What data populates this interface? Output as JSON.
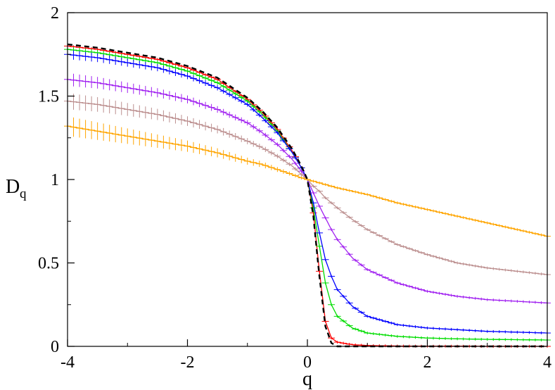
{
  "chart_data": {
    "type": "line",
    "title": "",
    "xlabel": "q",
    "ylabel": "D",
    "ylabel_subscript": "q",
    "xlim": [
      -4,
      4
    ],
    "ylim": [
      0,
      2
    ],
    "grid": false,
    "x_ticks": [
      -4,
      -2,
      0,
      2,
      4
    ],
    "x_tick_labels": [
      "-4",
      "-2",
      "0",
      "2",
      "4"
    ],
    "y_ticks": [
      0,
      0.5,
      1,
      1.5,
      2
    ],
    "y_tick_labels": [
      "0",
      "0.5",
      "1",
      "1.5",
      "2"
    ],
    "x": [
      -4,
      -3.5,
      -3,
      -2.5,
      -2,
      -1.5,
      -1,
      -0.75,
      -0.5,
      -0.25,
      -0.1,
      0,
      0.1,
      0.2,
      0.3,
      0.4,
      0.5,
      0.75,
      1,
      1.5,
      2,
      2.5,
      3,
      3.5,
      4
    ],
    "series": [
      {
        "color": "#ff0000",
        "style": "solid",
        "error_bars": true,
        "values": [
          1.8,
          1.78,
          1.75,
          1.72,
          1.67,
          1.6,
          1.48,
          1.4,
          1.3,
          1.17,
          1.07,
          1.0,
          0.8,
          0.45,
          0.15,
          0.05,
          0.025,
          0.01,
          0.005,
          0.002,
          0.001,
          0.001,
          0.0,
          0.0,
          0.0
        ]
      },
      {
        "color": "#00dd00",
        "style": "solid",
        "error_bars": true,
        "values": [
          1.78,
          1.76,
          1.73,
          1.7,
          1.65,
          1.58,
          1.47,
          1.39,
          1.29,
          1.16,
          1.07,
          1.0,
          0.83,
          0.6,
          0.38,
          0.25,
          0.18,
          0.11,
          0.08,
          0.06,
          0.05,
          0.045,
          0.042,
          0.04,
          0.038
        ]
      },
      {
        "color": "#0000ff",
        "style": "solid",
        "error_bars": true,
        "values": [
          1.75,
          1.73,
          1.7,
          1.67,
          1.62,
          1.55,
          1.45,
          1.37,
          1.28,
          1.16,
          1.07,
          1.0,
          0.86,
          0.68,
          0.52,
          0.42,
          0.34,
          0.24,
          0.18,
          0.13,
          0.11,
          0.1,
          0.09,
          0.085,
          0.08
        ]
      },
      {
        "color": "#a020f0",
        "style": "solid",
        "error_bars": true,
        "values": [
          1.6,
          1.58,
          1.55,
          1.52,
          1.48,
          1.42,
          1.34,
          1.28,
          1.21,
          1.12,
          1.05,
          1.0,
          0.92,
          0.84,
          0.77,
          0.7,
          0.64,
          0.53,
          0.46,
          0.38,
          0.33,
          0.3,
          0.28,
          0.27,
          0.26
        ]
      },
      {
        "color": "#bc8f8f",
        "style": "solid",
        "error_bars": true,
        "values": [
          1.47,
          1.45,
          1.42,
          1.39,
          1.35,
          1.3,
          1.23,
          1.19,
          1.14,
          1.08,
          1.03,
          1.0,
          0.96,
          0.93,
          0.89,
          0.86,
          0.83,
          0.76,
          0.7,
          0.61,
          0.55,
          0.5,
          0.47,
          0.45,
          0.43
        ]
      },
      {
        "color": "#ffa500",
        "style": "solid",
        "error_bars": true,
        "values": [
          1.32,
          1.29,
          1.26,
          1.23,
          1.2,
          1.16,
          1.11,
          1.09,
          1.06,
          1.03,
          1.01,
          1.0,
          0.99,
          0.98,
          0.97,
          0.96,
          0.95,
          0.93,
          0.91,
          0.86,
          0.82,
          0.78,
          0.74,
          0.7,
          0.66
        ]
      },
      {
        "color": "#000000",
        "style": "dashed",
        "error_bars": false,
        "values": [
          1.81,
          1.79,
          1.76,
          1.73,
          1.68,
          1.61,
          1.49,
          1.41,
          1.31,
          1.18,
          1.08,
          1.0,
          0.78,
          0.42,
          0.12,
          0.02,
          0.0,
          0.0,
          0.0,
          0.0,
          0.0,
          0.0,
          0.0,
          0.0,
          0.0
        ]
      }
    ]
  }
}
